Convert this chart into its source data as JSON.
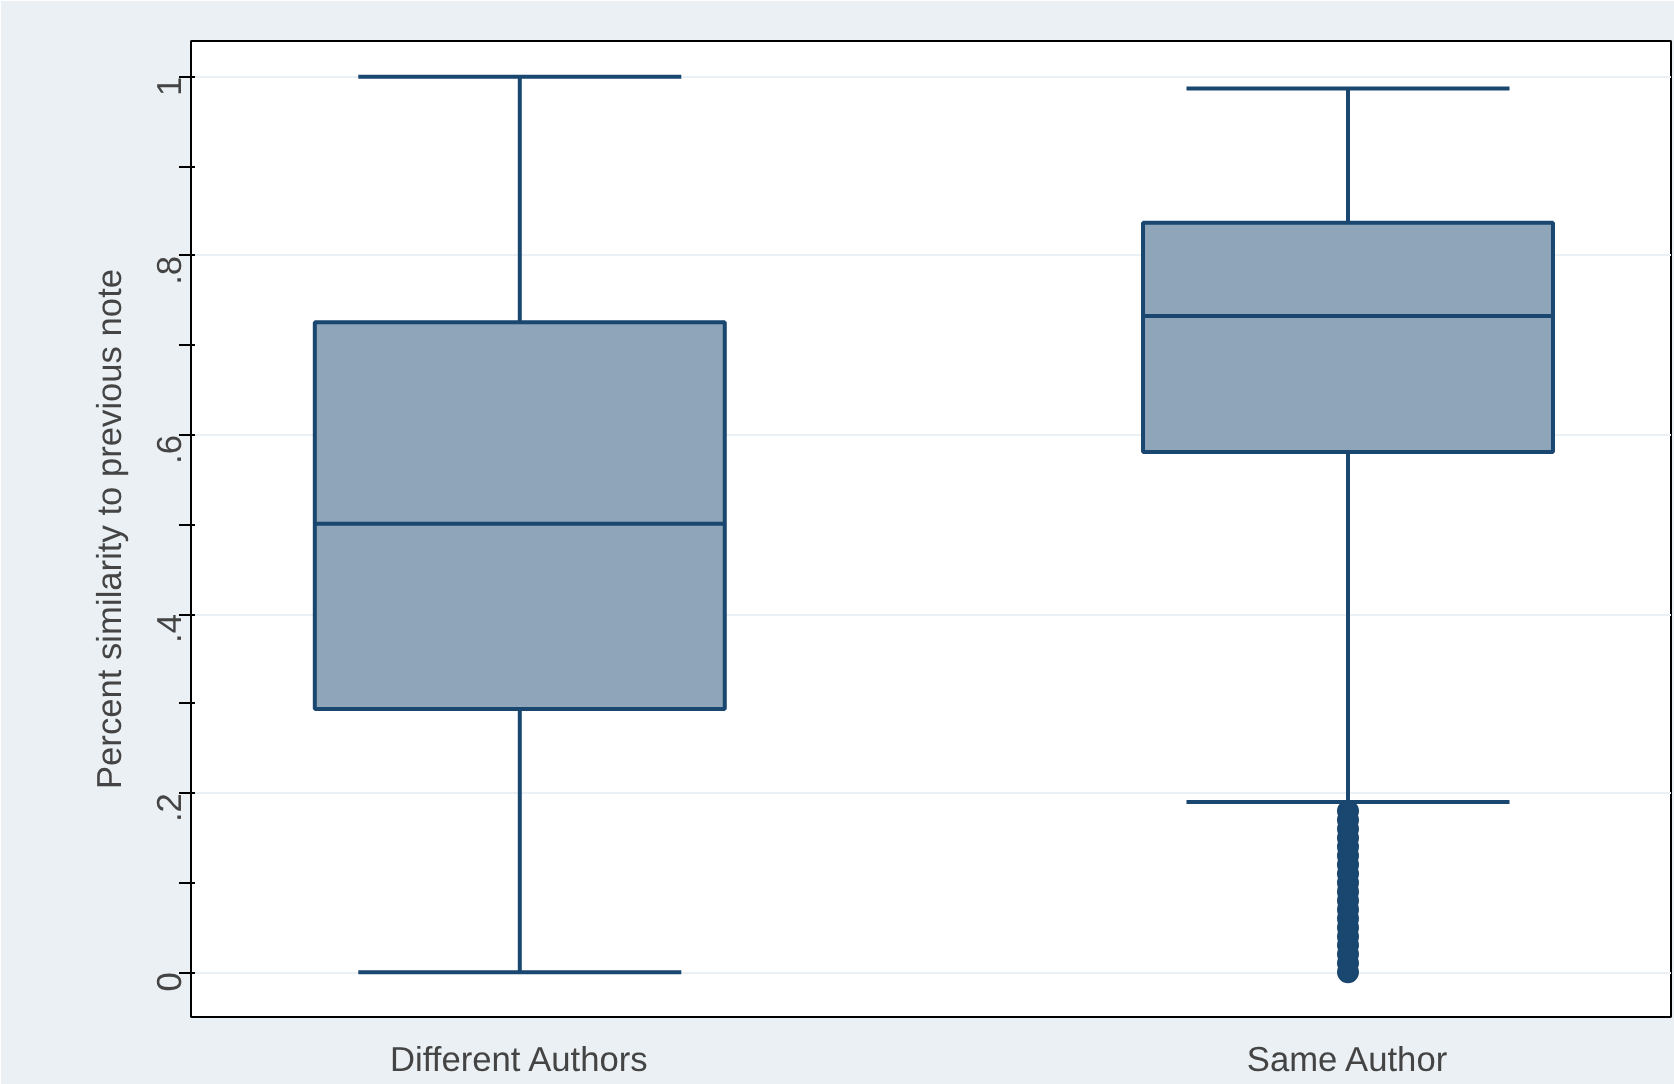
{
  "chart_data": {
    "type": "box",
    "ylabel": "Percent similarity to previous note",
    "categories": [
      "Different Authors",
      "Same Author"
    ],
    "series": [
      {
        "color": "#8ea5ba",
        "boxes": [
          {
            "low": 0,
            "q1": 0.294,
            "median": 0.501,
            "q3": 0.726,
            "high": 1
          },
          {
            "low": 0.19,
            "q1": 0.581,
            "median": 0.733,
            "q3": 0.837,
            "high": 0.987,
            "outliers": [
              0,
              0.01,
              0.02,
              0.03,
              0.04,
              0.05,
              0.06,
              0.07,
              0.08,
              0.09,
              0.1,
              0.11,
              0.12,
              0.13,
              0.14,
              0.15,
              0.16,
              0.17,
              0.18
            ]
          }
        ]
      }
    ],
    "ylim": [
      -0.05,
      1.04
    ],
    "yticks": [
      {
        "value": 0,
        "label": "0"
      },
      {
        "value": 0.1,
        "label": null
      },
      {
        "value": 0.2,
        "label": ".2"
      },
      {
        "value": 0.3,
        "label": null
      },
      {
        "value": 0.4,
        "label": ".4"
      },
      {
        "value": 0.5,
        "label": null
      },
      {
        "value": 0.6,
        "label": ".6"
      },
      {
        "value": 0.7,
        "label": null
      },
      {
        "value": 0.8,
        "label": ".8"
      },
      {
        "value": 0.9,
        "label": null
      },
      {
        "value": 1,
        "label": "1"
      }
    ],
    "grid": "y"
  }
}
